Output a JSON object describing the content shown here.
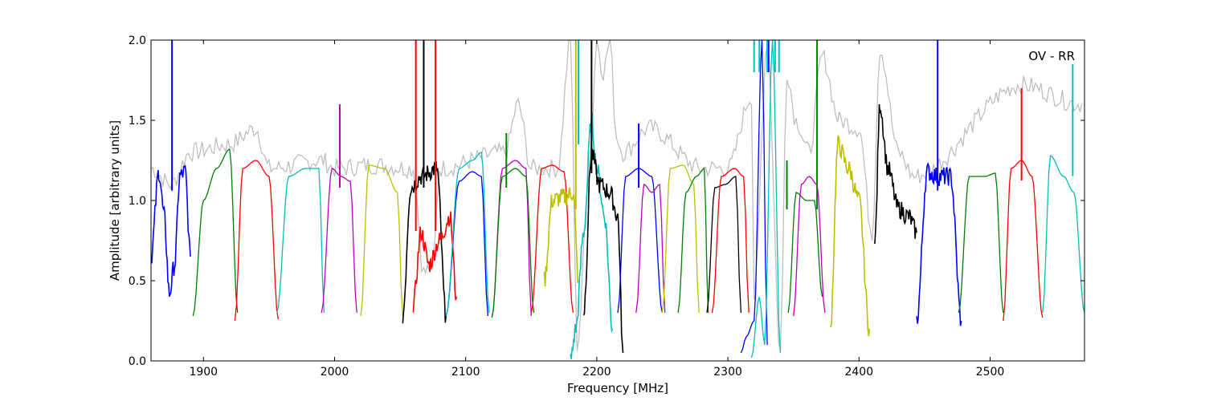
{
  "chart_data": {
    "type": "line",
    "title": "",
    "annotation": "OV - RR",
    "xlabel": "Frequency [MHz]",
    "ylabel": "Amplitude [arbitrary units]",
    "xlim": [
      1860,
      2572
    ],
    "ylim": [
      0.0,
      2.0
    ],
    "x_ticks": [
      1900,
      2000,
      2100,
      2200,
      2300,
      2400,
      2500
    ],
    "x_tick_labels": [
      "1900",
      "2000",
      "2100",
      "2200",
      "2300",
      "2400",
      "2500"
    ],
    "y_ticks": [
      0.0,
      0.5,
      1.0,
      1.5,
      2.0
    ],
    "y_tick_labels": [
      "0.0",
      "0.5",
      "1.0",
      "1.5",
      "2.0"
    ],
    "grid": false,
    "legend": "none",
    "background_trace_color": "#bfbfbf",
    "series": [
      {
        "color": "#0000ff",
        "x": [
          1860,
          1866,
          1870,
          1874,
          1878,
          1882,
          1886,
          1890
        ],
        "y": [
          0.65,
          1.18,
          0.9,
          0.42,
          0.6,
          1.15,
          1.18,
          0.65
        ],
        "spikes": [
          [
            1876,
            2.0
          ]
        ],
        "noisy": true
      },
      {
        "color": "#007f00",
        "x": [
          1892,
          1900,
          1910,
          1920,
          1926
        ],
        "y": [
          0.28,
          1.0,
          1.2,
          1.32,
          0.3
        ],
        "spikes": [],
        "noisy": false
      },
      {
        "color": "#ff0000",
        "x": [
          1924,
          1930,
          1940,
          1950,
          1957
        ],
        "y": [
          0.25,
          1.2,
          1.25,
          1.15,
          0.26
        ],
        "spikes": [],
        "noisy": false
      },
      {
        "color": "#00bfbf",
        "x": [
          1956,
          1965,
          1978,
          1988,
          1992
        ],
        "y": [
          0.3,
          1.15,
          1.2,
          1.2,
          0.3
        ],
        "spikes": [],
        "noisy": false
      },
      {
        "color": "#bf00bf",
        "x": [
          1990,
          1998,
          2005,
          2012,
          2017
        ],
        "y": [
          0.3,
          1.2,
          1.15,
          1.12,
          0.3
        ],
        "spikes": [
          [
            2004,
            1.6
          ]
        ],
        "noisy": false
      },
      {
        "color": "#bfbf00",
        "x": [
          2020,
          2026,
          2038,
          2048,
          2052
        ],
        "y": [
          0.28,
          1.22,
          1.2,
          1.05,
          0.28
        ],
        "spikes": [],
        "noisy": false
      },
      {
        "color": "#000000",
        "x": [
          2052,
          2058,
          2066,
          2078,
          2085
        ],
        "y": [
          0.28,
          1.08,
          1.15,
          1.2,
          0.28
        ],
        "spikes": [
          [
            2068,
            2.0
          ]
        ],
        "noisy": true
      },
      {
        "color": "#ff0000",
        "x": [
          2060,
          2066,
          2072,
          2080,
          2088,
          2093
        ],
        "y": [
          0.35,
          0.8,
          0.6,
          0.75,
          0.9,
          0.4
        ],
        "spikes": [
          [
            2062,
            2.0
          ],
          [
            2077,
            2.0
          ]
        ],
        "noisy": true
      },
      {
        "color": "#0000ff",
        "x": [
          2085,
          2095,
          2105,
          2112,
          2117
        ],
        "y": [
          0.28,
          1.12,
          1.18,
          1.15,
          0.28
        ],
        "spikes": [],
        "noisy": false
      },
      {
        "color": "#00bfbf",
        "x": [
          2085,
          2095,
          2105,
          2112,
          2118
        ],
        "y": [
          0.28,
          1.2,
          1.25,
          1.3,
          0.3
        ],
        "spikes": [],
        "noisy": false
      },
      {
        "color": "#bf00bf",
        "x": [
          2120,
          2128,
          2138,
          2146,
          2150
        ],
        "y": [
          0.27,
          1.2,
          1.25,
          1.2,
          0.28
        ],
        "spikes": [],
        "noisy": false
      },
      {
        "color": "#007f00",
        "x": [
          2120,
          2128,
          2138,
          2146,
          2152
        ],
        "y": [
          0.27,
          1.15,
          1.2,
          1.15,
          0.3
        ],
        "spikes": [
          [
            2131,
            1.42
          ]
        ],
        "noisy": false
      },
      {
        "color": "#ff0000",
        "x": [
          2150,
          2158,
          2166,
          2175,
          2182
        ],
        "y": [
          0.3,
          1.2,
          1.22,
          1.18,
          0.3
        ],
        "spikes": [],
        "noisy": false
      },
      {
        "color": "#bfbf00",
        "x": [
          2160,
          2166,
          2175,
          2182,
          2186
        ],
        "y": [
          0.5,
          1.0,
          1.02,
          1.05,
          0.5
        ],
        "spikes": [
          [
            2184,
            2.0
          ]
        ],
        "noisy": true
      },
      {
        "color": "#00bfbf",
        "x": [
          2180,
          2184,
          2190,
          2196,
          2200,
          2206,
          2212
        ],
        "y": [
          0.0,
          0.2,
          0.8,
          1.5,
          1.2,
          0.9,
          0.2
        ],
        "spikes": [
          [
            2186,
            2.0
          ]
        ],
        "noisy": true
      },
      {
        "color": "#000000",
        "x": [
          2190,
          2196,
          2202,
          2210,
          2216,
          2220
        ],
        "y": [
          0.3,
          1.3,
          1.1,
          1.05,
          0.9,
          0.05
        ],
        "spikes": [
          [
            2196,
            2.0
          ]
        ],
        "noisy": true
      },
      {
        "color": "#0000ff",
        "x": [
          2216,
          2222,
          2232,
          2242,
          2250
        ],
        "y": [
          0.3,
          1.15,
          1.2,
          1.15,
          0.3
        ],
        "spikes": [
          [
            2232,
            1.48
          ]
        ],
        "noisy": false
      },
      {
        "color": "#bf00bf",
        "x": [
          2230,
          2236,
          2242,
          2248,
          2252
        ],
        "y": [
          0.3,
          1.1,
          1.05,
          1.1,
          0.3
        ],
        "spikes": [],
        "noisy": false
      },
      {
        "color": "#bfbf00",
        "x": [
          2250,
          2256,
          2266,
          2274,
          2278
        ],
        "y": [
          0.3,
          1.2,
          1.22,
          1.1,
          0.3
        ],
        "spikes": [],
        "noisy": false
      },
      {
        "color": "#007f00",
        "x": [
          2262,
          2268,
          2276,
          2282,
          2285
        ],
        "y": [
          0.3,
          1.05,
          1.15,
          1.2,
          0.3
        ],
        "spikes": [],
        "noisy": false
      },
      {
        "color": "#000000",
        "x": [
          2284,
          2290,
          2298,
          2306,
          2310
        ],
        "y": [
          0.3,
          1.08,
          1.1,
          1.15,
          0.3
        ],
        "spikes": [],
        "noisy": false
      },
      {
        "color": "#ff0000",
        "x": [
          2288,
          2295,
          2305,
          2312,
          2316
        ],
        "y": [
          0.3,
          1.15,
          1.2,
          1.15,
          0.3
        ],
        "spikes": [],
        "noisy": false
      },
      {
        "color": "#0000ff",
        "x": [
          2310,
          2314,
          2320,
          2326,
          2330
        ],
        "y": [
          0.05,
          0.15,
          0.25,
          2.0,
          0.1
        ],
        "spikes": [
          [
            2331,
            2.0
          ]
        ],
        "noisy": false
      },
      {
        "color": "#00bfbf",
        "x": [
          2318,
          2324,
          2328,
          2334,
          2340
        ],
        "y": [
          0.02,
          0.4,
          0.1,
          2.0,
          0.05
        ],
        "spikes": [
          [
            2320,
            2.0
          ],
          [
            2324,
            2.0
          ],
          [
            2330,
            2.0
          ],
          [
            2336,
            2.0
          ],
          [
            2339,
            2.0
          ]
        ],
        "noisy": false
      },
      {
        "color": "#007f00",
        "x": [
          2346,
          2352,
          2360,
          2366,
          2372
        ],
        "y": [
          0.3,
          1.05,
          1.0,
          1.0,
          0.4
        ],
        "spikes": [
          [
            2345,
            1.25
          ],
          [
            2368,
            2.0
          ]
        ],
        "noisy": false
      },
      {
        "color": "#bf00bf",
        "x": [
          2350,
          2356,
          2362,
          2368,
          2374
        ],
        "y": [
          0.28,
          1.1,
          1.15,
          1.1,
          0.3
        ],
        "spikes": [],
        "noisy": false
      },
      {
        "color": "#bfbf00",
        "x": [
          2378,
          2384,
          2392,
          2400,
          2408
        ],
        "y": [
          0.17,
          1.35,
          1.2,
          1.0,
          0.2
        ],
        "spikes": [],
        "noisy": true
      },
      {
        "color": "#000000",
        "x": [
          2412,
          2416,
          2422,
          2430,
          2438,
          2444
        ],
        "y": [
          0.72,
          1.6,
          1.2,
          0.95,
          0.9,
          0.8
        ],
        "spikes": [],
        "noisy": true
      },
      {
        "color": "#0000ff",
        "x": [
          2444,
          2452,
          2460,
          2470,
          2478
        ],
        "y": [
          0.25,
          1.18,
          1.15,
          1.15,
          0.25
        ],
        "spikes": [
          [
            2460,
            2.0
          ]
        ],
        "noisy": true
      },
      {
        "color": "#007f00",
        "x": [
          2476,
          2484,
          2496,
          2504,
          2510
        ],
        "y": [
          0.3,
          1.15,
          1.15,
          1.17,
          0.3
        ],
        "spikes": [],
        "noisy": false
      },
      {
        "color": "#ff0000",
        "x": [
          2510,
          2516,
          2524,
          2532,
          2540
        ],
        "y": [
          0.25,
          1.2,
          1.25,
          1.15,
          0.27
        ],
        "spikes": [
          [
            2524,
            1.7
          ]
        ],
        "noisy": false
      },
      {
        "color": "#00bfbf",
        "x": [
          2540,
          2546,
          2556,
          2564,
          2572
        ],
        "y": [
          0.3,
          1.28,
          1.15,
          1.05,
          0.3
        ],
        "spikes": [
          [
            2563,
            1.85
          ]
        ],
        "noisy": false
      }
    ],
    "background_trace": {
      "x": [
        1860,
        1875,
        1890,
        1920,
        1940,
        1950,
        1990,
        2000,
        2030,
        2060,
        2068,
        2075,
        2080,
        2130,
        2140,
        2150,
        2170,
        2180,
        2185,
        2195,
        2200,
        2205,
        2210,
        2215,
        2220,
        2240,
        2280,
        2300,
        2318,
        2320,
        2330,
        2340,
        2345,
        2352,
        2362,
        2372,
        2385,
        2400,
        2410,
        2416,
        2430,
        2442,
        2524,
        2570
      ],
      "y": [
        1.2,
        1.1,
        1.3,
        1.35,
        1.45,
        1.2,
        1.25,
        1.2,
        1.22,
        1.2,
        0.55,
        0.6,
        1.2,
        1.3,
        1.6,
        1.2,
        1.2,
        2.0,
        0.1,
        1.3,
        2.0,
        1.8,
        2.0,
        1.4,
        1.3,
        1.45,
        1.2,
        1.2,
        1.65,
        0.4,
        2.0,
        0.05,
        1.8,
        1.5,
        1.3,
        1.9,
        1.5,
        1.45,
        0.8,
        1.95,
        1.3,
        1.15,
        1.72,
        1.6
      ]
    }
  }
}
